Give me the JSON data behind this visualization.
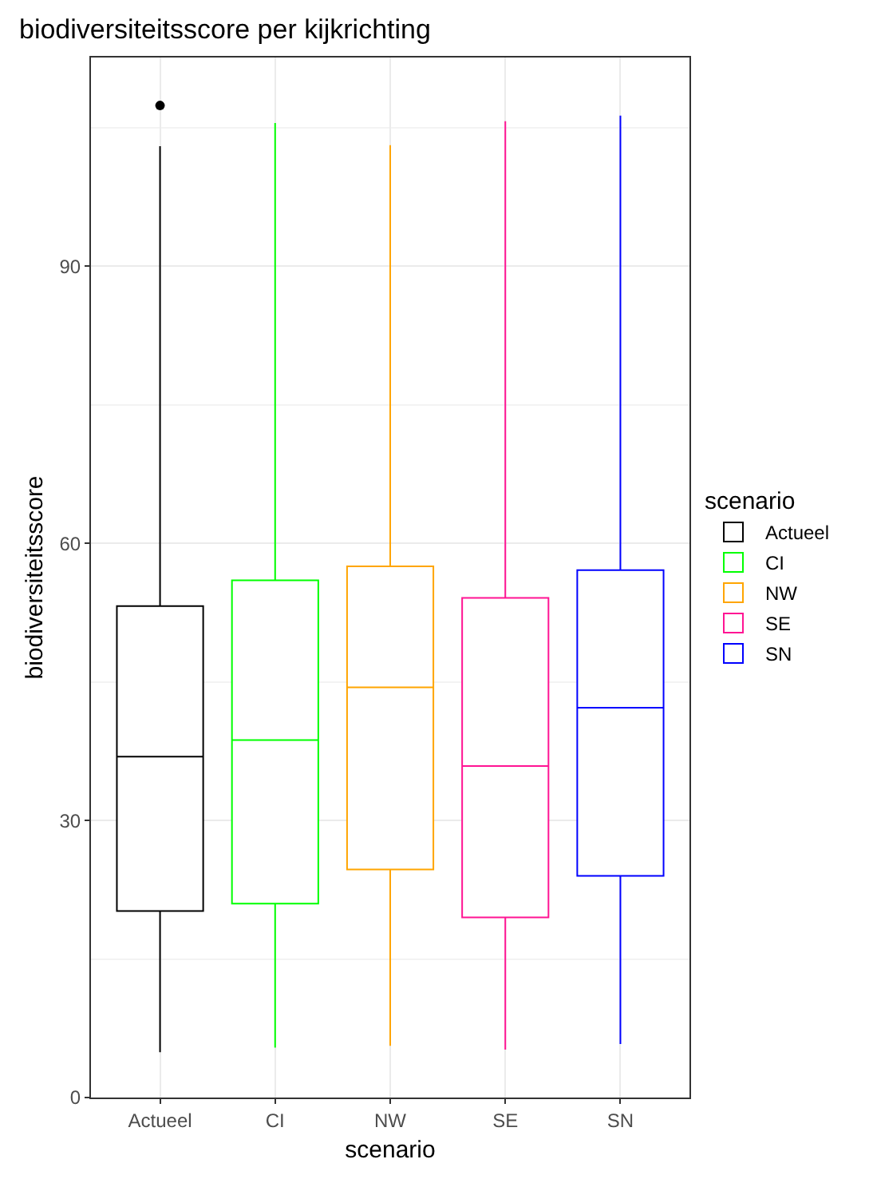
{
  "chart_data": {
    "type": "box",
    "title": "biodiversiteitsscore per kijkrichting",
    "xlabel": "scenario",
    "ylabel": "biodiversiteitsscore",
    "legend_title": "scenario",
    "categories": [
      "Actueel",
      "CI",
      "NW",
      "SE",
      "SN"
    ],
    "series": [
      {
        "name": "Actueel",
        "color": "#000000",
        "x": [
          "Actueel"
        ],
        "boxes": [
          {
            "low": 4.9,
            "q1": 20.2,
            "median": 36.9,
            "q3": 53.2,
            "high": 103.0,
            "outliers": [
              107.4
            ]
          }
        ]
      },
      {
        "name": "CI",
        "color": "#00ff00",
        "x": [
          "CI"
        ],
        "boxes": [
          {
            "low": 5.4,
            "q1": 21.0,
            "median": 38.7,
            "q3": 56.0,
            "high": 105.5
          }
        ]
      },
      {
        "name": "NW",
        "color": "#ffa500",
        "x": [
          "NW"
        ],
        "boxes": [
          {
            "low": 5.6,
            "q1": 24.7,
            "median": 44.4,
            "q3": 57.5,
            "high": 103.1
          }
        ]
      },
      {
        "name": "SE",
        "color": "#ff1493",
        "x": [
          "SE"
        ],
        "boxes": [
          {
            "low": 5.2,
            "q1": 19.5,
            "median": 35.9,
            "q3": 54.1,
            "high": 105.7
          }
        ]
      },
      {
        "name": "SN",
        "color": "#0000ff",
        "x": [
          "SN"
        ],
        "boxes": [
          {
            "low": 5.8,
            "q1": 24.0,
            "median": 42.2,
            "q3": 57.1,
            "high": 106.3
          }
        ]
      }
    ],
    "ylim": [
      0,
      112.6
    ],
    "yticks": [
      0,
      30,
      60,
      90
    ],
    "grid": true,
    "legend": "right"
  }
}
